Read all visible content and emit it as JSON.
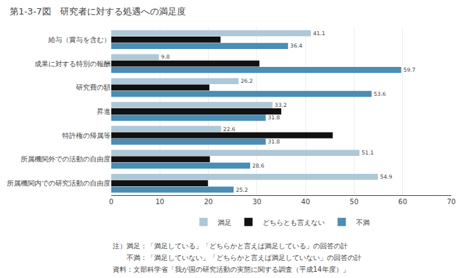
{
  "chart_data": {
    "type": "bar",
    "orientation": "horizontal",
    "title": "第1-3-7図　研究者に対する処遇への満足度",
    "categories": [
      "給与（賞与を含む）",
      "成果に対する特別の報酬",
      "研究費の額",
      "昇進",
      "特許権の帰属等",
      "所属機関外での活動の自由度",
      "所属機関内での研究活動の自由度"
    ],
    "series": [
      {
        "name": "満足",
        "color": "#aec8d8",
        "data_labels": true,
        "values": [
          41.1,
          9.8,
          26.2,
          33.2,
          22.6,
          51.1,
          54.9
        ]
      },
      {
        "name": "どちらとも言えない",
        "color": "#111111",
        "data_labels": false,
        "values": [
          22.5,
          30.5,
          20.2,
          35.0,
          45.6,
          20.3,
          19.9
        ]
      },
      {
        "name": "不満",
        "color": "#4a8db5",
        "data_labels": true,
        "values": [
          36.4,
          59.7,
          53.6,
          31.8,
          31.8,
          28.6,
          25.2
        ]
      }
    ],
    "xlim": [
      0,
      70
    ],
    "xticks": [
      0,
      10,
      20,
      30,
      40,
      50,
      60,
      70
    ],
    "grid": true,
    "legend": "bottom",
    "annotations": [
      "注）満足：「満足している」「どちらかと言えば満足している」の回答の計",
      "　　不満：「満足していない」「どちらかと言えば満足していない」の回答の計",
      "資料：文部科学省「我が国の研究活動の実態に関する調査（平成14年度）」"
    ]
  }
}
